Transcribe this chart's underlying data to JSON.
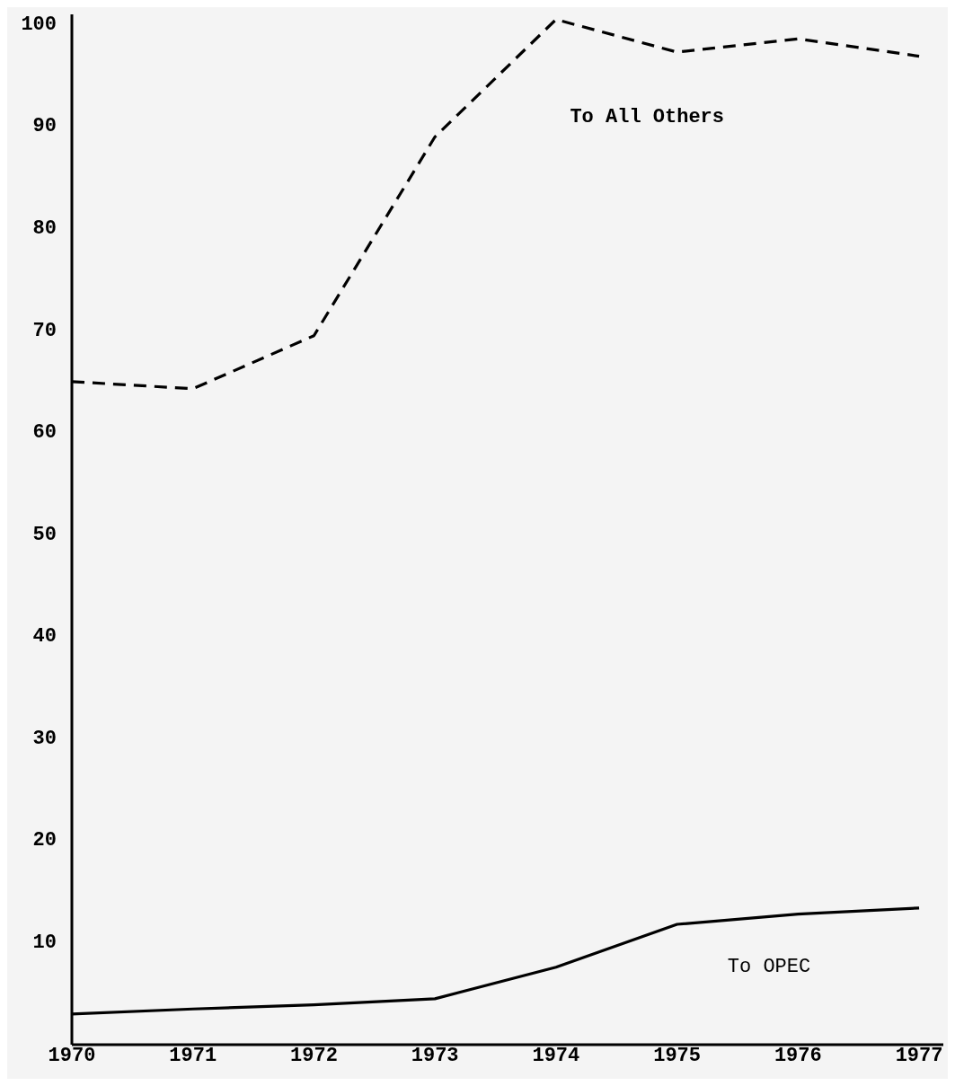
{
  "chart_data": {
    "type": "line",
    "x": [
      1970,
      1971,
      1972,
      1973,
      1974,
      1975,
      1976,
      1977
    ],
    "xlim": [
      1970,
      1977.2
    ],
    "xticks": [
      1970,
      1971,
      1972,
      1973,
      1974,
      1975,
      1976,
      1977
    ],
    "ylim": [
      0,
      101
    ],
    "yticks": [
      10,
      20,
      30,
      40,
      50,
      60,
      70,
      80,
      90,
      100
    ],
    "legend": false,
    "grid": false,
    "marker": "none",
    "series": [
      {
        "name": "To All Others",
        "color": "#000000",
        "line_style": "dashed",
        "values": [
          65,
          64.3,
          69.5,
          89,
          100.5,
          97.3,
          98.6,
          96.9
        ]
      },
      {
        "name": "To OPEC",
        "color": "#000000",
        "line_style": "solid",
        "values": [
          3,
          3.5,
          3.9,
          4.5,
          7.6,
          11.8,
          12.8,
          13.4
        ]
      }
    ]
  }
}
